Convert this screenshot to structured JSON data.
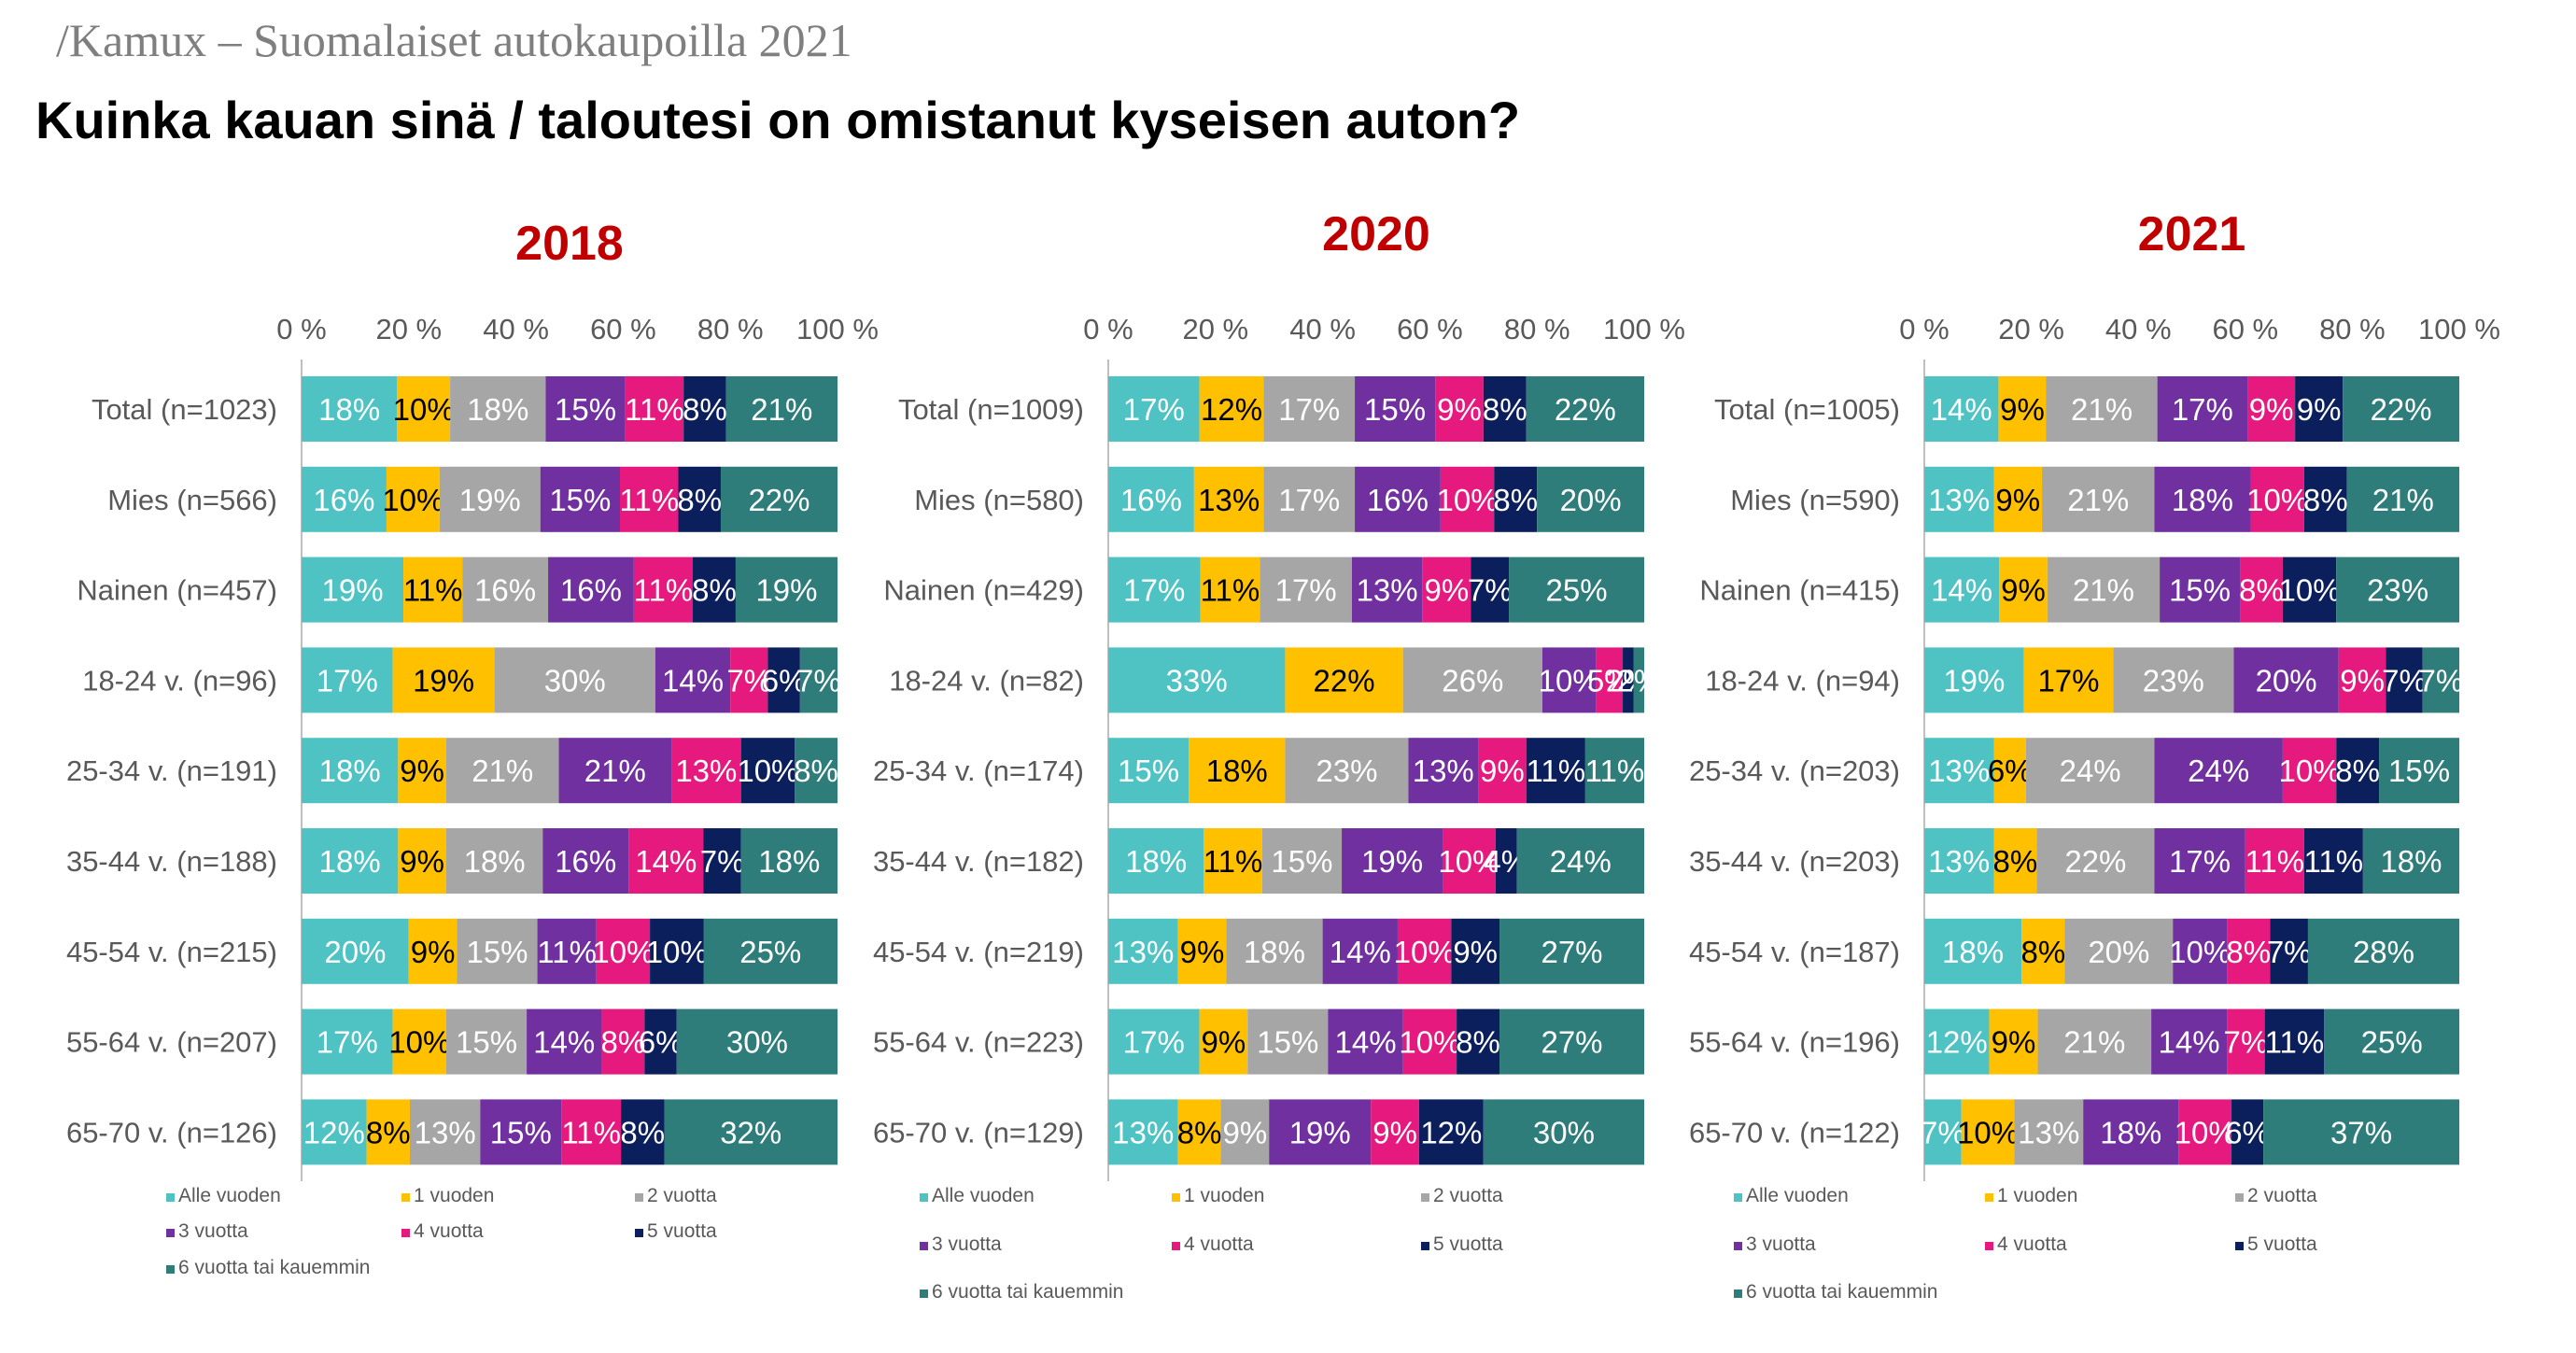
{
  "header": {
    "brand": "/Kamux – Suomalaiset autokaupoilla 2021",
    "title": "Kuinka kauan sinä / taloutesi on omistanut kyseisen auton?"
  },
  "colors": [
    "#4fc3c3",
    "#ffc000",
    "#a6a6a6",
    "#7030a0",
    "#e6197f",
    "#0b1f5c",
    "#2e7d7a"
  ],
  "chart_data": [
    {
      "type": "bar",
      "orientation": "horizontal",
      "stacked": true,
      "title": "2018",
      "xlim": [
        0,
        100
      ],
      "xticks": [
        "0 %",
        "20 %",
        "40 %",
        "60 %",
        "80 %",
        "100 %"
      ],
      "categories": [
        "Total (n=1023)",
        "Mies (n=566)",
        "Nainen (n=457)",
        "18-24 v. (n=96)",
        "25-34 v. (n=191)",
        "35-44 v. (n=188)",
        "45-54 v. (n=215)",
        "55-64 v. (n=207)",
        "65-70 v. (n=126)"
      ],
      "series": [
        {
          "name": "Alle vuoden",
          "values": [
            18,
            16,
            19,
            17,
            18,
            18,
            20,
            17,
            12
          ]
        },
        {
          "name": "1 vuoden",
          "values": [
            10,
            10,
            11,
            19,
            9,
            9,
            9,
            10,
            8
          ]
        },
        {
          "name": "2 vuotta",
          "values": [
            18,
            19,
            16,
            30,
            21,
            18,
            15,
            15,
            13
          ]
        },
        {
          "name": "3 vuotta",
          "values": [
            15,
            15,
            16,
            14,
            21,
            16,
            11,
            14,
            15
          ]
        },
        {
          "name": "4 vuotta",
          "values": [
            11,
            11,
            11,
            7,
            13,
            14,
            10,
            8,
            11
          ]
        },
        {
          "name": "5 vuotta",
          "values": [
            8,
            8,
            8,
            6,
            10,
            7,
            10,
            6,
            8
          ]
        },
        {
          "name": "6 vuotta tai kauemmin",
          "values": [
            21,
            22,
            19,
            7,
            8,
            18,
            25,
            30,
            32
          ]
        }
      ]
    },
    {
      "type": "bar",
      "orientation": "horizontal",
      "stacked": true,
      "title": "2020",
      "xlim": [
        0,
        100
      ],
      "xticks": [
        "0 %",
        "20 %",
        "40 %",
        "60 %",
        "80 %",
        "100 %"
      ],
      "categories": [
        "Total (n=1009)",
        "Mies (n=580)",
        "Nainen (n=429)",
        "18-24 v. (n=82)",
        "25-34 v. (n=174)",
        "35-44 v. (n=182)",
        "45-54 v. (n=219)",
        "55-64 v. (n=223)",
        "65-70 v. (n=129)"
      ],
      "series": [
        {
          "name": "Alle vuoden",
          "values": [
            17,
            16,
            17,
            33,
            15,
            18,
            13,
            17,
            13
          ]
        },
        {
          "name": "1 vuoden",
          "values": [
            12,
            13,
            11,
            22,
            18,
            11,
            9,
            9,
            8
          ]
        },
        {
          "name": "2 vuotta",
          "values": [
            17,
            17,
            17,
            26,
            23,
            15,
            18,
            15,
            9
          ]
        },
        {
          "name": "3 vuotta",
          "values": [
            15,
            16,
            13,
            10,
            13,
            19,
            14,
            14,
            19
          ]
        },
        {
          "name": "4 vuotta",
          "values": [
            9,
            10,
            9,
            5,
            9,
            10,
            10,
            10,
            9
          ]
        },
        {
          "name": "5 vuotta",
          "values": [
            8,
            8,
            7,
            2,
            11,
            4,
            9,
            8,
            12
          ]
        },
        {
          "name": "6 vuotta tai kauemmin",
          "values": [
            22,
            20,
            25,
            2,
            11,
            24,
            27,
            27,
            30
          ]
        }
      ]
    },
    {
      "type": "bar",
      "orientation": "horizontal",
      "stacked": true,
      "title": "2021",
      "xlim": [
        0,
        100
      ],
      "xticks": [
        "0 %",
        "20 %",
        "40 %",
        "60 %",
        "80 %",
        "100 %"
      ],
      "categories": [
        "Total (n=1005)",
        "Mies (n=590)",
        "Nainen (n=415)",
        "18-24 v. (n=94)",
        "25-34 v. (n=203)",
        "35-44 v. (n=203)",
        "45-54 v. (n=187)",
        "55-64 v. (n=196)",
        "65-70 v. (n=122)"
      ],
      "series": [
        {
          "name": "Alle vuoden",
          "values": [
            14,
            13,
            14,
            19,
            13,
            13,
            18,
            12,
            7
          ]
        },
        {
          "name": "1 vuoden",
          "values": [
            9,
            9,
            9,
            17,
            6,
            8,
            8,
            9,
            10
          ]
        },
        {
          "name": "2 vuotta",
          "values": [
            21,
            21,
            21,
            23,
            24,
            22,
            20,
            21,
            13
          ]
        },
        {
          "name": "3 vuotta",
          "values": [
            17,
            18,
            15,
            20,
            24,
            17,
            10,
            14,
            18
          ]
        },
        {
          "name": "4 vuotta",
          "values": [
            9,
            10,
            8,
            9,
            10,
            11,
            8,
            7,
            10
          ]
        },
        {
          "name": "5 vuotta",
          "values": [
            9,
            8,
            10,
            7,
            8,
            11,
            7,
            11,
            6
          ]
        },
        {
          "name": "6 vuotta tai kauemmin",
          "values": [
            22,
            21,
            23,
            7,
            15,
            18,
            28,
            25,
            37
          ]
        }
      ]
    }
  ]
}
